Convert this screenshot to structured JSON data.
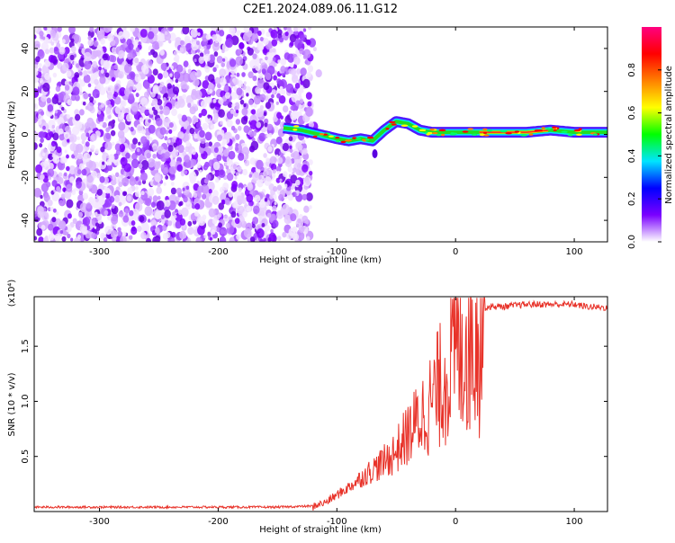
{
  "page": {
    "title": "C2E1.2024.089.06.11.G12"
  },
  "colorbar": {
    "label": "Normalized spectral amplitude",
    "ticks": [
      "0.0",
      "0.2",
      "0.4",
      "0.6",
      "0.8"
    ],
    "colors": [
      "#ffffff",
      "#7a00ff",
      "#0000ff",
      "#00e5ff",
      "#00ff00",
      "#ffff00",
      "#ff8000",
      "#ff0000",
      "#ff0080"
    ]
  },
  "chart_data": [
    {
      "type": "heatmap",
      "title": "C2E1.2024.089.06.11.G12",
      "xlabel": "Height of straight line (km)",
      "ylabel": "Frequency (Hz)",
      "xlim": [
        -355,
        128
      ],
      "ylim": [
        -50,
        50
      ],
      "xticks": [
        "-300",
        "-200",
        "-100",
        "0",
        "100"
      ],
      "yticks": [
        "-40",
        "-20",
        "0",
        "20",
        "40"
      ],
      "noise_region_x": [
        -355,
        -122
      ],
      "signal_trace": {
        "x": [
          -145,
          -130,
          -115,
          -100,
          -90,
          -80,
          -70,
          -60,
          -50,
          -40,
          -30,
          -20,
          -10,
          0,
          20,
          40,
          60,
          80,
          100,
          128
        ],
        "freq": [
          3,
          2,
          0,
          -2,
          -3,
          -2,
          -3,
          2,
          6,
          5,
          2,
          1,
          1,
          1,
          1,
          1,
          1,
          2,
          1,
          1
        ]
      },
      "colorbar_range": [
        0.0,
        1.0
      ]
    },
    {
      "type": "line",
      "xlabel": "Height of straight line (km)",
      "ylabel": "SNR (10 * v/v)",
      "y_multiplier": "(x10⁴)",
      "xlim": [
        -355,
        128
      ],
      "ylim": [
        0,
        1.95
      ],
      "xticks": [
        "-300",
        "-200",
        "-100",
        "0",
        "100"
      ],
      "yticks": [
        "0.5",
        "1.0",
        "1.5"
      ],
      "color": "#e8332a",
      "series": [
        {
          "x": [
            -355,
            -300,
            -250,
            -200,
            -150,
            -120,
            -110,
            -100,
            -90,
            -80,
            -70,
            -60,
            -50,
            -40,
            -30,
            -20,
            -10,
            0,
            10,
            20,
            25,
            30,
            40,
            50,
            60,
            70,
            80,
            90,
            100,
            110,
            128
          ],
          "values": [
            0.04,
            0.04,
            0.04,
            0.04,
            0.04,
            0.05,
            0.08,
            0.15,
            0.22,
            0.3,
            0.38,
            0.45,
            0.55,
            0.7,
            0.85,
            1.0,
            1.2,
            1.45,
            1.6,
            1.78,
            1.85,
            1.86,
            1.86,
            1.87,
            1.88,
            1.88,
            1.88,
            1.88,
            1.88,
            1.86,
            1.85
          ]
        }
      ]
    }
  ]
}
